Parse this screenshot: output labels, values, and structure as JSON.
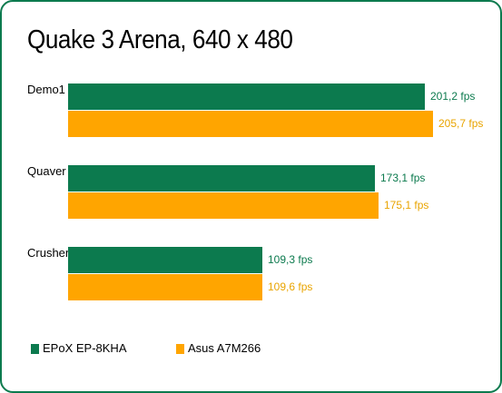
{
  "chart_data": {
    "type": "bar",
    "orientation": "horizontal",
    "title": "Quake 3 Arena, 640 x 480",
    "categories": [
      "Demo1",
      "Quaver",
      "Crusher"
    ],
    "series": [
      {
        "name": "EPoX EP-8KHA",
        "values": [
          201.2,
          173.1,
          109.3
        ],
        "labels": [
          "201,2 fps",
          "173,1 fps",
          "109,3 fps"
        ],
        "color": "#0c7a4e"
      },
      {
        "name": "Asus A7M266",
        "values": [
          205.7,
          175.1,
          109.6
        ],
        "labels": [
          "205,7 fps",
          "175,1 fps",
          "109,6 fps"
        ],
        "color": "#ffa500"
      }
    ],
    "unit": "fps",
    "xlim": [
      0,
      205.7
    ],
    "grid": false,
    "legend_position": "bottom-left"
  },
  "colors": {
    "border": "#0c7a4e",
    "epox_label": "#0c7a4e",
    "asus_label": "#e9a400"
  }
}
